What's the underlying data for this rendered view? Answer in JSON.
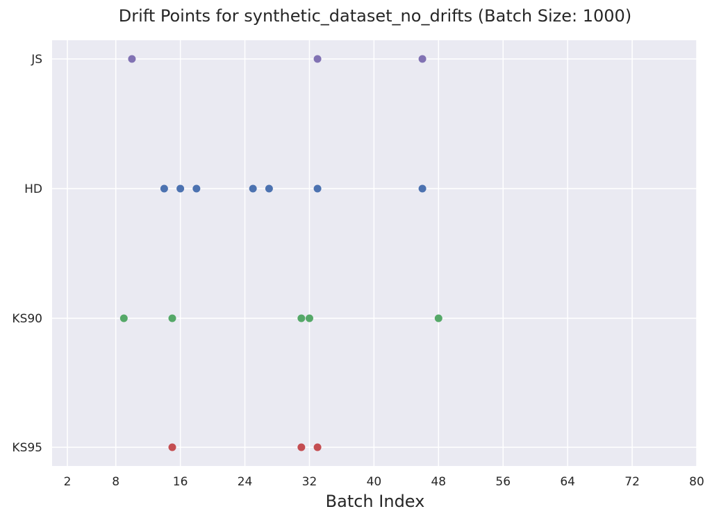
{
  "chart_data": {
    "type": "scatter",
    "title": "Drift Points for synthetic_dataset_no_drifts (Batch Size: 1000)",
    "xlabel": "Batch Index",
    "ylabel": "",
    "xlim": [
      0,
      80
    ],
    "xticks": [
      2,
      8,
      16,
      24,
      32,
      40,
      48,
      56,
      64,
      72,
      80
    ],
    "categories": [
      "KS95",
      "KS90",
      "HD",
      "JS"
    ],
    "grid": true,
    "legend": "none",
    "background_color": "#eaeaf2",
    "series": [
      {
        "category": "JS",
        "color": "#8172b3",
        "x": [
          10,
          33,
          46
        ]
      },
      {
        "category": "HD",
        "color": "#4c72b0",
        "x": [
          14,
          16,
          18,
          25,
          27,
          33,
          46
        ]
      },
      {
        "category": "KS90",
        "color": "#55a868",
        "x": [
          9,
          15,
          31,
          32,
          48
        ]
      },
      {
        "category": "KS95",
        "color": "#c44e52",
        "x": [
          15,
          31,
          33
        ]
      }
    ]
  }
}
